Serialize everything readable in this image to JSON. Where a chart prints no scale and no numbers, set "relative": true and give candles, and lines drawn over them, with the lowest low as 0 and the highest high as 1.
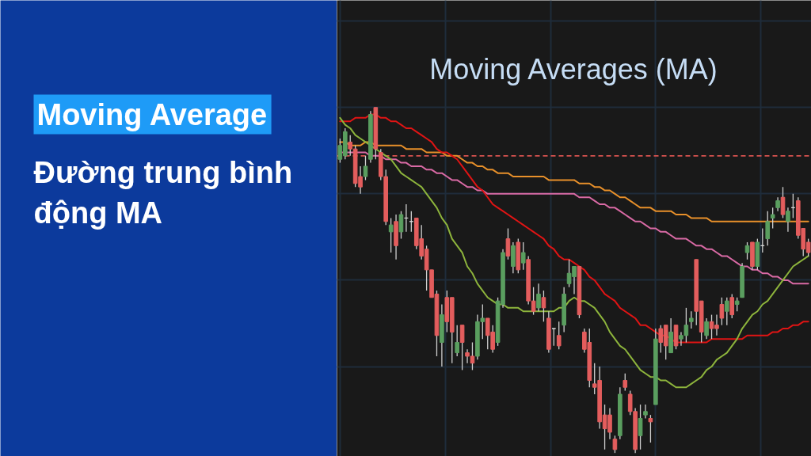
{
  "chart_data": {
    "type": "candlestick",
    "title": "Moving Average",
    "subtitle": "Đường trung bình động MA",
    "annotations": [
      "Moving Averages (MA)"
    ],
    "relative": true,
    "grid": true,
    "categories": [
      null,
      null,
      null,
      null,
      null,
      null,
      null,
      null,
      null,
      null,
      null,
      null,
      null,
      null,
      null,
      null,
      null,
      null,
      null,
      null,
      null,
      null,
      null,
      null,
      null,
      null,
      null,
      null,
      null,
      null,
      null,
      null,
      null,
      null,
      null,
      null,
      null,
      null,
      null,
      null,
      null,
      null,
      null,
      null,
      null,
      null,
      null,
      null,
      null,
      null,
      null,
      null,
      null,
      null,
      null,
      null,
      null,
      null,
      null,
      null,
      null,
      null,
      null,
      null,
      null,
      null,
      null,
      null,
      null,
      null,
      null,
      null,
      null,
      null,
      null,
      null,
      null,
      null,
      null,
      null,
      null,
      null,
      null,
      null,
      null,
      null,
      null,
      null,
      null,
      null,
      null,
      null,
      null
    ],
    "ohlc": [
      [
        0.85,
        0.91,
        0.84,
        0.89
      ],
      [
        0.86,
        0.94,
        0.85,
        0.93
      ],
      [
        0.9,
        0.92,
        0.86,
        0.88
      ],
      [
        0.88,
        0.89,
        0.77,
        0.78
      ],
      [
        0.8,
        0.83,
        0.75,
        0.77
      ],
      [
        0.8,
        0.86,
        0.79,
        0.83
      ],
      [
        0.85,
        0.99,
        0.84,
        0.98
      ],
      [
        1.0,
        1.0,
        0.85,
        0.88
      ],
      [
        0.87,
        0.88,
        0.79,
        0.8
      ],
      [
        0.8,
        0.82,
        0.66,
        0.67
      ],
      [
        0.64,
        0.68,
        0.58,
        0.66
      ],
      [
        0.67,
        0.69,
        0.56,
        0.6
      ],
      [
        0.64,
        0.7,
        0.62,
        0.69
      ],
      [
        0.68,
        0.72,
        0.64,
        0.68
      ],
      [
        0.67,
        0.7,
        0.64,
        0.67
      ],
      [
        0.68,
        0.68,
        0.59,
        0.6
      ],
      [
        0.62,
        0.66,
        0.56,
        0.57
      ],
      [
        0.59,
        0.6,
        0.47,
        0.53
      ],
      [
        0.53,
        0.53,
        0.45,
        0.45
      ],
      [
        0.46,
        0.47,
        0.28,
        0.34
      ],
      [
        0.32,
        0.43,
        0.25,
        0.4
      ],
      [
        0.45,
        0.47,
        0.35,
        0.38
      ],
      [
        0.45,
        0.45,
        0.26,
        0.35
      ],
      [
        0.29,
        0.37,
        0.28,
        0.32
      ],
      [
        0.37,
        0.37,
        0.24,
        0.32
      ],
      [
        0.29,
        0.3,
        0.26,
        0.28
      ],
      [
        0.28,
        0.32,
        0.24,
        0.26
      ],
      [
        0.28,
        0.4,
        0.27,
        0.38
      ],
      [
        0.38,
        0.43,
        0.33,
        0.39
      ],
      [
        0.39,
        0.39,
        0.3,
        0.34
      ],
      [
        0.35,
        0.37,
        0.29,
        0.3
      ],
      [
        0.32,
        0.45,
        0.31,
        0.44
      ],
      [
        0.43,
        0.59,
        0.42,
        0.58
      ],
      [
        0.62,
        0.65,
        0.56,
        0.57
      ],
      [
        0.54,
        0.61,
        0.52,
        0.6
      ],
      [
        0.61,
        0.62,
        0.52,
        0.53
      ],
      [
        0.55,
        0.61,
        0.53,
        0.58
      ],
      [
        0.56,
        0.57,
        0.43,
        0.44
      ],
      [
        0.44,
        0.48,
        0.4,
        0.41
      ],
      [
        0.42,
        0.49,
        0.41,
        0.46
      ],
      [
        0.45,
        0.47,
        0.38,
        0.42
      ],
      [
        0.39,
        0.41,
        0.29,
        0.3
      ],
      [
        0.36,
        0.36,
        0.31,
        0.36
      ],
      [
        0.34,
        0.38,
        0.3,
        0.31
      ],
      [
        0.37,
        0.48,
        0.35,
        0.46
      ],
      [
        0.49,
        0.56,
        0.48,
        0.52
      ],
      [
        0.51,
        0.54,
        0.46,
        0.54
      ],
      [
        0.54,
        0.54,
        0.39,
        0.4
      ],
      [
        0.35,
        0.36,
        0.29,
        0.3
      ],
      [
        0.32,
        0.36,
        0.19,
        0.21
      ],
      [
        0.2,
        0.26,
        0.17,
        0.19
      ],
      [
        0.21,
        0.25,
        0.07,
        0.09
      ],
      [
        0.11,
        0.14,
        0.01,
        0.07
      ],
      [
        0.11,
        0.13,
        0.04,
        0.06
      ],
      [
        0.04,
        0.05,
        0.0,
        0.01
      ],
      [
        0.05,
        0.19,
        0.04,
        0.17
      ],
      [
        0.21,
        0.23,
        0.18,
        0.19
      ],
      [
        0.17,
        0.18,
        0.11,
        0.12
      ],
      [
        0.12,
        0.13,
        0.0,
        0.01
      ],
      [
        0.05,
        0.14,
        0.01,
        0.1
      ],
      [
        0.11,
        0.14,
        0.1,
        0.12
      ],
      [
        0.1,
        0.11,
        0.03,
        0.09
      ],
      [
        0.14,
        0.36,
        0.14,
        0.33
      ],
      [
        0.36,
        0.37,
        0.29,
        0.32
      ],
      [
        0.37,
        0.37,
        0.27,
        0.31
      ],
      [
        0.29,
        0.39,
        0.29,
        0.35
      ],
      [
        0.37,
        0.37,
        0.3,
        0.31
      ],
      [
        0.33,
        0.35,
        0.31,
        0.34
      ],
      [
        0.34,
        0.42,
        0.32,
        0.37
      ],
      [
        0.38,
        0.41,
        0.36,
        0.39
      ],
      [
        0.56,
        0.56,
        0.37,
        0.41
      ],
      [
        0.44,
        0.44,
        0.32,
        0.35
      ],
      [
        0.34,
        0.39,
        0.33,
        0.38
      ],
      [
        0.38,
        0.4,
        0.33,
        0.36
      ],
      [
        0.37,
        0.4,
        0.34,
        0.36
      ],
      [
        0.43,
        0.45,
        0.37,
        0.39
      ],
      [
        0.41,
        0.45,
        0.37,
        0.44
      ],
      [
        0.45,
        0.46,
        0.39,
        0.4
      ],
      [
        0.43,
        0.45,
        0.41,
        0.44
      ],
      [
        0.45,
        0.55,
        0.45,
        0.54
      ],
      [
        0.58,
        0.61,
        0.56,
        0.6
      ],
      [
        0.61,
        0.61,
        0.53,
        0.54
      ],
      [
        0.54,
        0.62,
        0.53,
        0.61
      ],
      [
        0.6,
        0.65,
        0.58,
        0.6
      ],
      [
        0.62,
        0.7,
        0.6,
        0.67
      ],
      [
        0.68,
        0.71,
        0.65,
        0.69
      ],
      [
        0.71,
        0.74,
        0.7,
        0.73
      ],
      [
        0.74,
        0.77,
        0.68,
        0.69
      ],
      [
        0.67,
        0.71,
        0.64,
        0.7
      ],
      [
        0.71,
        0.75,
        0.68,
        0.71
      ],
      [
        0.73,
        0.74,
        0.62,
        0.63
      ],
      [
        0.65,
        0.65,
        0.57,
        0.59
      ],
      [
        0.61,
        0.62,
        0.57,
        0.58
      ]
    ],
    "colors": [
      "#5a9e5f",
      "#5a9e5f",
      "#e35d5d",
      "#e35d5d",
      "#e35d5d",
      "#5a9e5f",
      "#5a9e5f",
      "#e35d5d",
      "#e35d5d",
      "#e35d5d",
      "#5a9e5f",
      "#e35d5d",
      "#5a9e5f",
      "#d9d9d9",
      "#d9d9d9",
      "#e35d5d",
      "#e35d5d",
      "#e35d5d",
      "#e35d5d",
      "#e35d5d",
      "#5a9e5f",
      "#e35d5d",
      "#e35d5d",
      "#5a9e5f",
      "#e35d5d",
      "#e35d5d",
      "#e35d5d",
      "#5a9e5f",
      "#5a9e5f",
      "#e35d5d",
      "#e35d5d",
      "#5a9e5f",
      "#5a9e5f",
      "#e35d5d",
      "#5a9e5f",
      "#e35d5d",
      "#5a9e5f",
      "#e35d5d",
      "#e35d5d",
      "#5a9e5f",
      "#e35d5d",
      "#e35d5d",
      "#d9d9d9",
      "#e35d5d",
      "#5a9e5f",
      "#5a9e5f",
      "#5a9e5f",
      "#e35d5d",
      "#e35d5d",
      "#e35d5d",
      "#e35d5d",
      "#e35d5d",
      "#e35d5d",
      "#e35d5d",
      "#e35d5d",
      "#5a9e5f",
      "#e35d5d",
      "#e35d5d",
      "#e35d5d",
      "#5a9e5f",
      "#5a9e5f",
      "#e35d5d",
      "#5a9e5f",
      "#e35d5d",
      "#e35d5d",
      "#5a9e5f",
      "#e35d5d",
      "#5a9e5f",
      "#5a9e5f",
      "#5a9e5f",
      "#e35d5d",
      "#e35d5d",
      "#5a9e5f",
      "#e35d5d",
      "#e35d5d",
      "#e35d5d",
      "#5a9e5f",
      "#e35d5d",
      "#5a9e5f",
      "#5a9e5f",
      "#5a9e5f",
      "#e35d5d",
      "#5a9e5f",
      "#d9d9d9",
      "#5a9e5f",
      "#5a9e5f",
      "#5a9e5f",
      "#e35d5d",
      "#5a9e5f",
      "#d9d9d9",
      "#e35d5d",
      "#e35d5d",
      "#e35d5d"
    ],
    "series": [
      {
        "type": "line",
        "color": "#e8902a",
        "values": [
          0.9,
          0.9,
          0.89,
          0.89,
          0.89,
          0.9,
          0.9,
          0.89,
          0.89,
          0.89,
          0.89,
          0.89,
          0.89,
          0.88,
          0.88,
          0.88,
          0.88,
          0.87,
          0.87,
          0.87,
          0.87,
          0.86,
          0.86,
          0.86,
          0.85,
          0.84,
          0.84,
          0.83,
          0.83,
          0.82,
          0.82,
          0.81,
          0.81,
          0.81,
          0.8,
          0.8,
          0.8,
          0.8,
          0.8,
          0.8,
          0.8,
          0.79,
          0.79,
          0.79,
          0.79,
          0.79,
          0.79,
          0.78,
          0.78,
          0.78,
          0.77,
          0.77,
          0.76,
          0.76,
          0.75,
          0.74,
          0.74,
          0.73,
          0.72,
          0.71,
          0.71,
          0.71,
          0.7,
          0.7,
          0.7,
          0.7,
          0.69,
          0.69,
          0.69,
          0.68,
          0.68,
          0.68,
          0.68,
          0.67,
          0.67,
          0.67,
          0.67,
          0.67,
          0.67,
          0.67,
          0.67,
          0.67,
          0.67,
          0.67,
          0.67,
          0.67,
          0.67,
          0.67,
          0.67,
          0.67,
          0.67,
          0.67,
          0.67
        ]
      },
      {
        "type": "line",
        "color": "#d96aa5",
        "values": [
          0.87,
          0.87,
          0.87,
          0.87,
          0.87,
          0.87,
          0.86,
          0.86,
          0.86,
          0.85,
          0.85,
          0.85,
          0.84,
          0.84,
          0.83,
          0.83,
          0.83,
          0.82,
          0.82,
          0.81,
          0.81,
          0.8,
          0.79,
          0.79,
          0.78,
          0.77,
          0.77,
          0.76,
          0.76,
          0.75,
          0.75,
          0.75,
          0.75,
          0.75,
          0.75,
          0.75,
          0.75,
          0.75,
          0.75,
          0.75,
          0.75,
          0.75,
          0.75,
          0.75,
          0.75,
          0.75,
          0.75,
          0.74,
          0.74,
          0.74,
          0.73,
          0.72,
          0.72,
          0.71,
          0.71,
          0.7,
          0.69,
          0.68,
          0.67,
          0.67,
          0.66,
          0.65,
          0.65,
          0.64,
          0.64,
          0.63,
          0.62,
          0.62,
          0.62,
          0.61,
          0.6,
          0.6,
          0.59,
          0.59,
          0.58,
          0.57,
          0.57,
          0.56,
          0.55,
          0.54,
          0.54,
          0.53,
          0.53,
          0.52,
          0.52,
          0.51,
          0.51,
          0.5,
          0.5,
          0.49,
          0.49,
          0.49,
          0.49
        ]
      },
      {
        "type": "line",
        "color": "#e01414",
        "values": [
          0.96,
          0.96,
          0.96,
          0.97,
          0.97,
          0.97,
          0.98,
          0.98,
          0.97,
          0.97,
          0.96,
          0.96,
          0.95,
          0.94,
          0.94,
          0.93,
          0.92,
          0.91,
          0.9,
          0.88,
          0.87,
          0.87,
          0.86,
          0.85,
          0.83,
          0.81,
          0.79,
          0.77,
          0.76,
          0.74,
          0.72,
          0.71,
          0.7,
          0.69,
          0.68,
          0.67,
          0.66,
          0.65,
          0.64,
          0.63,
          0.62,
          0.6,
          0.59,
          0.57,
          0.56,
          0.56,
          0.55,
          0.54,
          0.53,
          0.51,
          0.5,
          0.48,
          0.46,
          0.45,
          0.44,
          0.42,
          0.41,
          0.4,
          0.39,
          0.37,
          0.37,
          0.36,
          0.35,
          0.34,
          0.34,
          0.33,
          0.32,
          0.32,
          0.32,
          0.32,
          0.32,
          0.32,
          0.32,
          0.33,
          0.33,
          0.33,
          0.33,
          0.33,
          0.33,
          0.33,
          0.34,
          0.34,
          0.34,
          0.34,
          0.34,
          0.35,
          0.35,
          0.36,
          0.36,
          0.37,
          0.37,
          0.38,
          0.38
        ]
      },
      {
        "type": "line",
        "color": "#8db43c",
        "values": [
          0.97,
          0.95,
          0.94,
          0.92,
          0.91,
          0.9,
          0.89,
          0.88,
          0.87,
          0.86,
          0.85,
          0.83,
          0.81,
          0.8,
          0.79,
          0.78,
          0.77,
          0.75,
          0.73,
          0.71,
          0.68,
          0.66,
          0.62,
          0.6,
          0.58,
          0.54,
          0.52,
          0.49,
          0.47,
          0.45,
          0.44,
          0.43,
          0.43,
          0.42,
          0.42,
          0.42,
          0.41,
          0.41,
          0.41,
          0.41,
          0.41,
          0.41,
          0.41,
          0.42,
          0.42,
          0.44,
          0.45,
          0.44,
          0.44,
          0.43,
          0.42,
          0.4,
          0.38,
          0.35,
          0.33,
          0.31,
          0.3,
          0.28,
          0.26,
          0.24,
          0.23,
          0.22,
          0.22,
          0.21,
          0.21,
          0.2,
          0.19,
          0.19,
          0.19,
          0.2,
          0.21,
          0.22,
          0.24,
          0.25,
          0.27,
          0.28,
          0.29,
          0.31,
          0.33,
          0.36,
          0.38,
          0.4,
          0.41,
          0.43,
          0.44,
          0.46,
          0.48,
          0.5,
          0.52,
          0.54,
          0.55,
          0.56,
          0.57
        ]
      }
    ],
    "ref_lines": [
      {
        "axis": "y",
        "value": 0.86,
        "color": "#d9534f",
        "line_style": "dashed"
      }
    ]
  }
}
